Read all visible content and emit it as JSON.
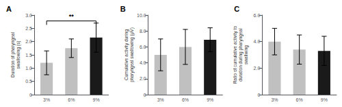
{
  "chart_data": [
    {
      "type": "bar",
      "title": "A",
      "ylabel": "Duration of pharyngeal\nswallowing (s)",
      "categories": [
        "3%",
        "6%",
        "9%"
      ],
      "values": [
        1.2,
        1.75,
        2.15
      ],
      "errors": [
        0.45,
        0.35,
        0.55
      ],
      "colors": [
        "#c0c0c0",
        "#c0c0c0",
        "#1a1a1a"
      ],
      "ylim": [
        0,
        3.0
      ],
      "yticks": [
        0,
        0.5,
        {
          "value": 1.0,
          "label": "1.0"
        },
        1.5,
        {
          "value": 2.0,
          "label": "2.0"
        },
        2.5,
        {
          "value": 3.0,
          "label": "3.0"
        }
      ],
      "annotations": [
        {
          "text": "**",
          "from": "3%",
          "to": "9%",
          "y": 2.78
        }
      ],
      "grid": false
    },
    {
      "type": "bar",
      "title": "B",
      "ylabel": "Cumulative activity during\npharyngeal swallowing (μV)",
      "categories": [
        "3%",
        "6%",
        "9%"
      ],
      "values": [
        5.0,
        6.0,
        6.9
      ],
      "errors": [
        2.0,
        2.2,
        1.5
      ],
      "colors": [
        "#c0c0c0",
        "#c0c0c0",
        "#1a1a1a"
      ],
      "ylim": [
        0,
        10.0
      ],
      "yticks": [
        0,
        {
          "value": 2.0,
          "label": "2.0"
        },
        {
          "value": 4.0,
          "label": "4.0"
        },
        {
          "value": 6.0,
          "label": "6.0"
        },
        {
          "value": 8.0,
          "label": "8.0"
        },
        {
          "value": 10.0,
          "label": "10.0"
        }
      ],
      "grid": false
    },
    {
      "type": "bar",
      "title": "C",
      "ylabel": "Ratio of cumulative activity to\nduration during pharyngeal\nswallwing",
      "categories": [
        "3%",
        "6%",
        "9%"
      ],
      "values": [
        4.0,
        3.4,
        3.3
      ],
      "errors": [
        1.0,
        1.1,
        1.1
      ],
      "colors": [
        "#c0c0c0",
        "#c0c0c0",
        "#1a1a1a"
      ],
      "ylim": [
        0,
        6.0
      ],
      "yticks": [
        0,
        {
          "value": 2.0,
          "label": "2.0"
        },
        {
          "value": 4.0,
          "label": "4.0"
        },
        {
          "value": 6.0,
          "label": "6.0"
        }
      ],
      "grid": false
    }
  ]
}
